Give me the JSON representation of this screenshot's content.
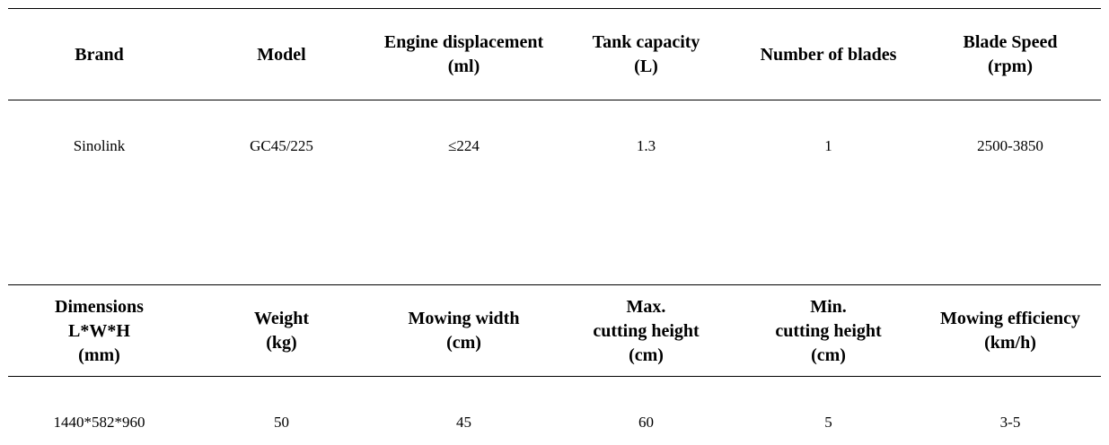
{
  "table1": {
    "headers": [
      "Brand",
      "Model",
      "Engine displacement\n(ml)",
      "Tank capacity\n(L)",
      "Number of blades",
      "Blade Speed\n(rpm)"
    ],
    "values": [
      "Sinolink",
      "GC45/225",
      "≤224",
      "1.3",
      "1",
      "2500-3850"
    ]
  },
  "table2": {
    "headers": [
      "Dimensions\nL*W*H\n(mm)",
      "Weight\n(kg)",
      "Mowing width\n(cm)",
      "Max.\ncutting height\n(cm)",
      "Min.\ncutting height\n(cm)",
      "Mowing efficiency\n(km/h)"
    ],
    "values": [
      "1440*582*960",
      "50",
      "45",
      "60",
      "5",
      "3-5"
    ]
  }
}
